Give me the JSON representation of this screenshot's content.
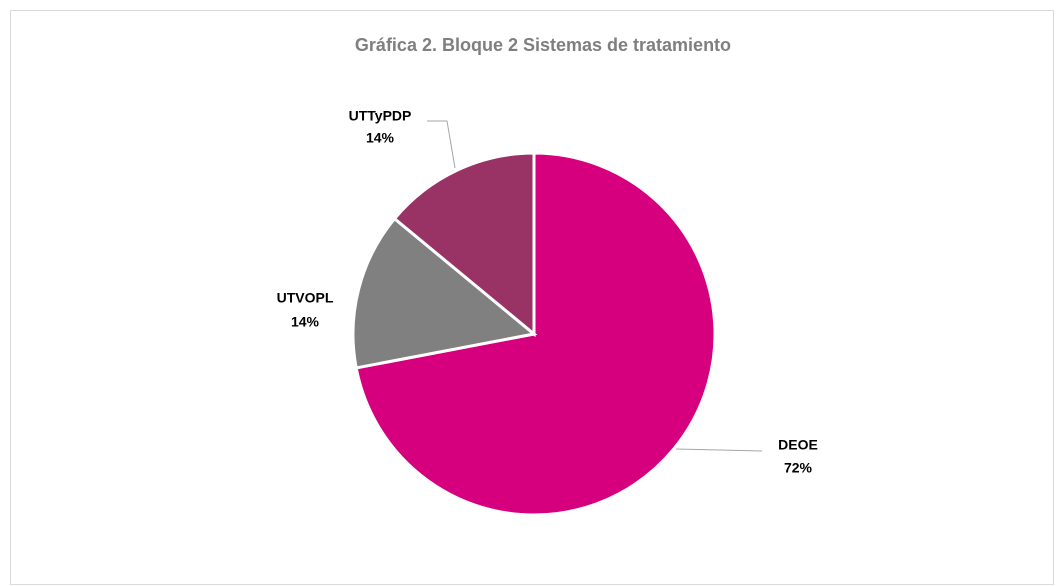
{
  "chart_data": {
    "type": "pie",
    "title": "Gráfica 2.  Bloque 2  Sistemas de tratamiento",
    "categories": [
      "DEOE",
      "UTVOPL",
      "UTTyPDP"
    ],
    "values": [
      72,
      14,
      14
    ],
    "value_labels": [
      "72%",
      "14%",
      "14%"
    ],
    "colors": [
      "#d6007f",
      "#808080",
      "#993366"
    ]
  }
}
